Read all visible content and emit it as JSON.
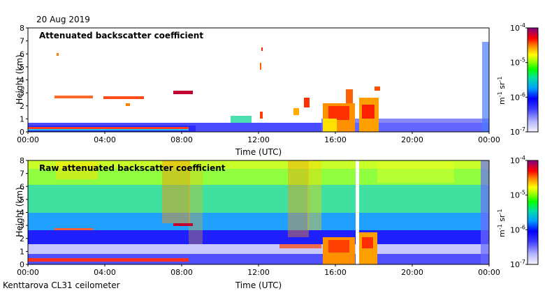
{
  "date": "20 Aug 2019",
  "station": "Kenttarova CL31 ceilometer",
  "colors": {
    "colormap": [
      "#f4f4ff",
      "#c8c8ff",
      "#6464ff",
      "#0000ff",
      "#0060ff",
      "#00c0ff",
      "#00e0a0",
      "#00ff00",
      "#a0ff00",
      "#ffff00",
      "#ffb000",
      "#ff6000",
      "#ff0000",
      "#c00040",
      "#800080"
    ]
  },
  "chart_data": [
    {
      "type": "heatmap",
      "title": "Attenuated backscatter coefficient",
      "xlabel": "Time (UTC)",
      "ylabel": "Height (km)",
      "xticks": [
        "00:00",
        "04:00",
        "08:00",
        "12:00",
        "16:00",
        "20:00",
        "00:00"
      ],
      "yticks": [
        "0",
        "1",
        "2",
        "3",
        "4",
        "5",
        "6",
        "7",
        "8"
      ],
      "xlim": [
        0,
        24
      ],
      "ylim": [
        0,
        8
      ],
      "colorbar": {
        "ticks": [
          "10",
          "10",
          "10",
          "10"
        ],
        "exponents": [
          "-4",
          "-5",
          "-6",
          "-7"
        ],
        "label": "m-1 sr-1"
      }
    },
    {
      "type": "heatmap",
      "title": "Raw attenuated backscatter coefficient",
      "xlabel": "Time (UTC)",
      "ylabel": "Height (km)",
      "xticks": [
        "00:00",
        "04:00",
        "08:00",
        "12:00",
        "16:00",
        "20:00",
        "00:00"
      ],
      "yticks": [
        "0",
        "1",
        "2",
        "3",
        "4",
        "5",
        "6",
        "7",
        "8"
      ],
      "xlim": [
        0,
        24
      ],
      "ylim": [
        0,
        8
      ],
      "colorbar": {
        "ticks": [
          "10",
          "10",
          "10",
          "10"
        ],
        "exponents": [
          "-4",
          "-5",
          "-6",
          "-7"
        ],
        "label": "m-1 sr-1"
      }
    }
  ]
}
